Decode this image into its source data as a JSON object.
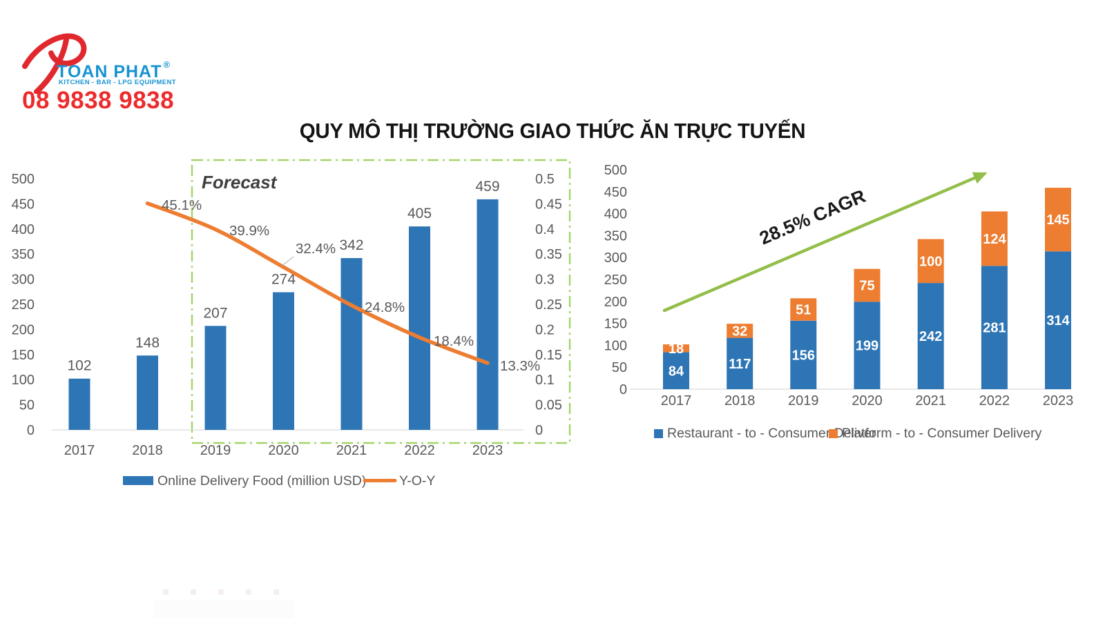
{
  "logo": {
    "brand": "TOAN PHAT",
    "registered_mark": "®",
    "tagline": "KITCHEN - BAR - LPG EQUIPMENT",
    "phone": "08 9838 9838",
    "colors": {
      "blue": "#1793d1",
      "red": "#e0282e"
    }
  },
  "title": "QUY MÔ THỊ TRƯỜNG GIAO THỨC ĂN TRỰC TUYẾN",
  "chart_data": [
    {
      "name": "online-delivery-food-market",
      "type": "bar+line",
      "categories": [
        "2017",
        "2018",
        "2019",
        "2020",
        "2021",
        "2022",
        "2023"
      ],
      "series": [
        {
          "name": "Online Delivery Food (million USD)",
          "type": "bar",
          "axis": "left",
          "color": "#2e75b5",
          "values": [
            102,
            148,
            207,
            274,
            342,
            405,
            459
          ],
          "value_labels": [
            "102",
            "148",
            "207",
            "274",
            "342",
            "405",
            "459"
          ]
        },
        {
          "name": "Y-O-Y",
          "type": "line",
          "axis": "right",
          "color": "#ed7d31",
          "values": [
            null,
            0.451,
            0.399,
            0.324,
            0.248,
            0.184,
            0.133
          ],
          "point_labels": [
            "",
            "45.1%",
            "39.9%",
            "32.4%",
            "24.8%",
            "18.4%",
            "13.3%"
          ]
        }
      ],
      "axis_left": {
        "min": 0,
        "max": 500,
        "tick_labels": [
          "0",
          "50",
          "100",
          "150",
          "200",
          "250",
          "300",
          "350",
          "400",
          "450",
          "500"
        ]
      },
      "axis_right": {
        "min": 0,
        "max": 0.5,
        "tick_labels": [
          "0",
          "0.05",
          "0.1",
          "0.15",
          "0.2",
          "0.25",
          "0.3",
          "0.35",
          "0.4",
          "0.45",
          "0.5"
        ]
      },
      "forecast": {
        "label": "Forecast",
        "start_category": "2019",
        "color": "#a2d467"
      },
      "legend": [
        "Online Delivery Food (million USD)",
        "Y-O-Y"
      ],
      "legend_position": "bottom",
      "grid": false,
      "label_color": "#595959"
    },
    {
      "name": "delivery-model-split",
      "type": "stacked-bar",
      "categories": [
        "2017",
        "2018",
        "2019",
        "2020",
        "2021",
        "2022",
        "2023"
      ],
      "series": [
        {
          "name": "Restaurant - to - Consumer Deliver",
          "color": "#2e75b5",
          "values": [
            84,
            117,
            156,
            199,
            242,
            281,
            314
          ],
          "value_labels": [
            "84",
            "117",
            "156",
            "199",
            "242",
            "281",
            "314"
          ]
        },
        {
          "name": "Platform - to - Consumer Delivery",
          "color": "#ed7d31",
          "values": [
            18,
            32,
            51,
            75,
            100,
            124,
            145
          ],
          "value_labels": [
            "18",
            "32",
            "51",
            "75",
            "100",
            "124",
            "145"
          ]
        }
      ],
      "axis": {
        "min": 0,
        "max": 500,
        "tick_labels": [
          "0",
          "50",
          "100",
          "150",
          "200",
          "250",
          "300",
          "350",
          "400",
          "450",
          "500"
        ]
      },
      "annotation": {
        "text": "28.5% CAGR",
        "arrow_color": "#93be4a"
      },
      "legend": [
        "Restaurant - to - Consumer Deliver",
        "Platform - to - Consumer Delivery"
      ],
      "legend_position": "bottom",
      "grid": false,
      "label_color": "#595959"
    }
  ]
}
